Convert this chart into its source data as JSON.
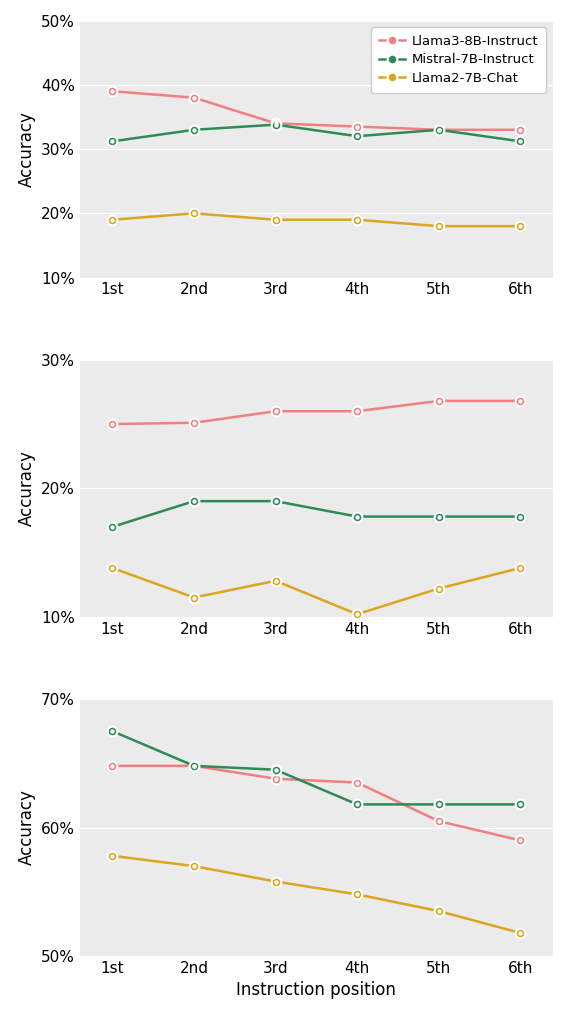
{
  "x_labels": [
    "1st",
    "2nd",
    "3rd",
    "4th",
    "5th",
    "6th"
  ],
  "subplots": [
    {
      "ylim": [
        0.1,
        0.5
      ],
      "yticks": [
        0.1,
        0.2,
        0.3,
        0.4,
        0.5
      ],
      "series": [
        {
          "label": "Llama3-8B-Instruct",
          "color": "#F08080",
          "values": [
            0.39,
            0.38,
            0.34,
            0.335,
            0.33,
            0.33
          ]
        },
        {
          "label": "Mistral-7B-Instruct",
          "color": "#2E8B57",
          "values": [
            0.312,
            0.33,
            0.338,
            0.32,
            0.33,
            0.312
          ]
        },
        {
          "label": "Llama2-7B-Chat",
          "color": "#DAA520",
          "values": [
            0.19,
            0.2,
            0.19,
            0.19,
            0.18,
            0.18
          ]
        }
      ],
      "show_legend": true
    },
    {
      "ylim": [
        0.1,
        0.3
      ],
      "yticks": [
        0.1,
        0.2,
        0.3
      ],
      "series": [
        {
          "label": "Llama3-8B-Instruct",
          "color": "#F08080",
          "values": [
            0.25,
            0.251,
            0.26,
            0.26,
            0.268,
            0.268
          ]
        },
        {
          "label": "Mistral-7B-Instruct",
          "color": "#2E8B57",
          "values": [
            0.17,
            0.19,
            0.19,
            0.178,
            0.178,
            0.178
          ]
        },
        {
          "label": "Llama2-7B-Chat",
          "color": "#DAA520",
          "values": [
            0.138,
            0.115,
            0.128,
            0.102,
            0.122,
            0.138
          ]
        }
      ],
      "show_legend": false
    },
    {
      "ylim": [
        0.5,
        0.7
      ],
      "yticks": [
        0.5,
        0.6,
        0.7
      ],
      "series": [
        {
          "label": "Llama3-8B-Instruct",
          "color": "#F08080",
          "values": [
            0.648,
            0.648,
            0.638,
            0.635,
            0.605,
            0.59
          ]
        },
        {
          "label": "Mistral-7B-Instruct",
          "color": "#2E8B57",
          "values": [
            0.675,
            0.648,
            0.645,
            0.618,
            0.618,
            0.618
          ]
        },
        {
          "label": "Llama2-7B-Chat",
          "color": "#DAA520",
          "values": [
            0.578,
            0.57,
            0.558,
            0.548,
            0.535,
            0.518
          ]
        }
      ],
      "show_legend": false
    }
  ],
  "xlabel": "Instruction position",
  "ylabel": "Accuracy",
  "marker": "o",
  "marker_size": 7,
  "line_width": 1.8,
  "marker_edgewidth": 1.5,
  "axes_facecolor": "#EBEBEB",
  "figure_facecolor": "#FFFFFF",
  "grid_color": "#FFFFFF",
  "legend_fontsize": 9.5,
  "tick_fontsize": 11,
  "label_fontsize": 12
}
